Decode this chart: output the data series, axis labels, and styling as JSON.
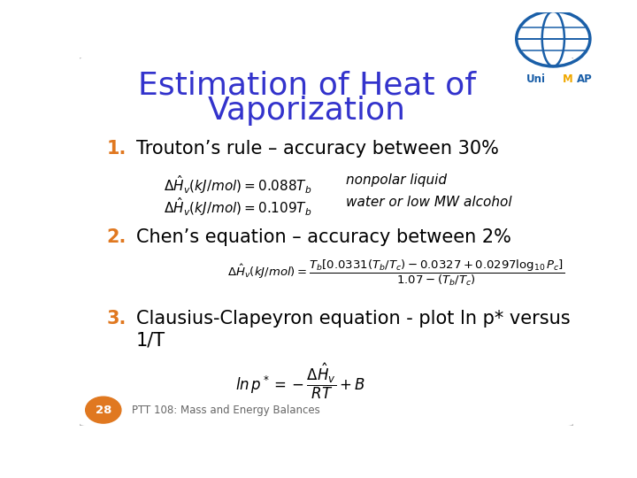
{
  "title_line1": "Estimation of Heat of",
  "title_line2": "Vaporization",
  "title_color": "#3333CC",
  "title_fontsize": 26,
  "background_color": "#FFFFFF",
  "slide_border_color": "#BBBBBB",
  "orange_color": "#E07820",
  "item1_label": "1.",
  "item1_text": "Trouton’s rule – accuracy between 30%",
  "item2_label": "2.",
  "item2_text": "Chen’s equation – accuracy between 2%",
  "item3_label": "3.",
  "item3_text_line1": "Clausius-Clapeyron equation - plot ln p* versus",
  "item3_text_line2": "1/T",
  "footer_text": "PTT 108: Mass and Energy Balances",
  "page_number": "28",
  "page_badge_color": "#E07820",
  "eq1a_note": "nonpolar liquid",
  "eq1b_note": "water or low MW alcohol"
}
